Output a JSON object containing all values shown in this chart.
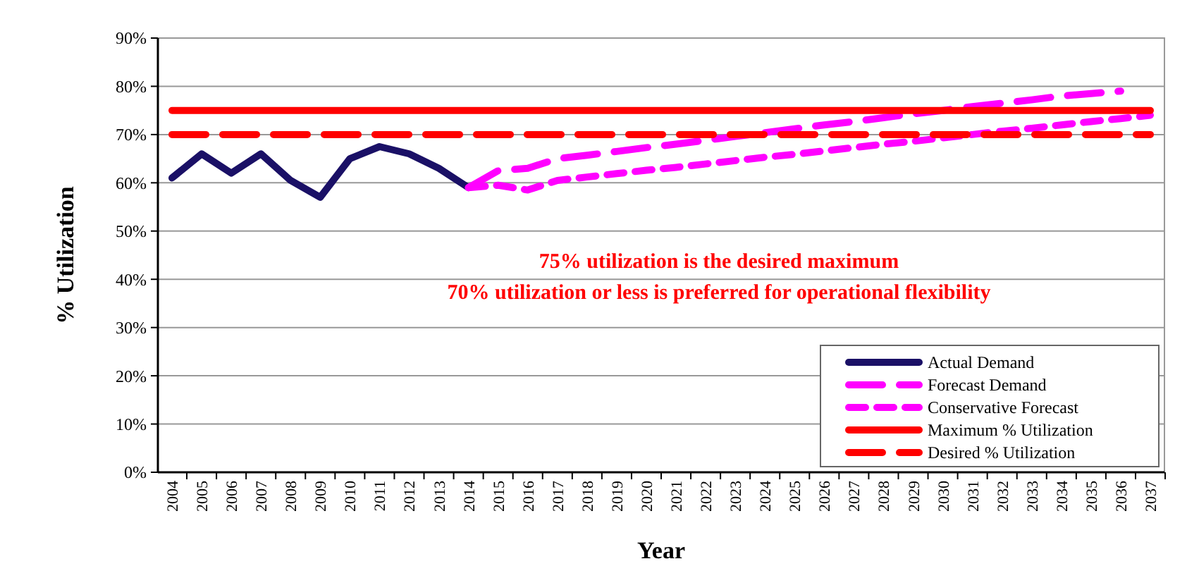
{
  "chart_data": {
    "type": "line",
    "xlabel": "Year",
    "ylabel": "% Utilization",
    "categories": [
      "2004",
      "2005",
      "2006",
      "2007",
      "2008",
      "2009",
      "2010",
      "2011",
      "2012",
      "2013",
      "2014",
      "2015",
      "2016",
      "2017",
      "2018",
      "2019",
      "2020",
      "2021",
      "2022",
      "2023",
      "2024",
      "2025",
      "2026",
      "2027",
      "2028",
      "2029",
      "2030",
      "2031",
      "2032",
      "2033",
      "2034",
      "2035",
      "2036",
      "2037"
    ],
    "series": [
      {
        "name": "Actual Demand",
        "color": "#1a1066",
        "line_style": "solid",
        "values": [
          61,
          66,
          62,
          66,
          60.5,
          57,
          65,
          67.5,
          66,
          63,
          59,
          null,
          null,
          null,
          null,
          null,
          null,
          null,
          null,
          null,
          null,
          null,
          null,
          null,
          null,
          null,
          null,
          null,
          null,
          null,
          null,
          null,
          null,
          null
        ]
      },
      {
        "name": "Forecast Demand",
        "color": "#ff00ff",
        "line_style": "dashed",
        "values": [
          null,
          null,
          null,
          null,
          null,
          null,
          null,
          null,
          null,
          null,
          59,
          62.5,
          63,
          65,
          65.7,
          66.5,
          67.3,
          68,
          68.8,
          69.6,
          70.4,
          71.2,
          72,
          72.7,
          73.5,
          74.3,
          75,
          75.8,
          76.5,
          77.2,
          78,
          78.5,
          79,
          null
        ]
      },
      {
        "name": "Conservative Forecast",
        "color": "#ff00ff",
        "line_style": "dotted",
        "values": [
          null,
          null,
          null,
          null,
          null,
          null,
          null,
          null,
          null,
          null,
          59,
          59.5,
          58.5,
          60.5,
          61.2,
          61.9,
          62.6,
          63.2,
          63.9,
          64.6,
          65.3,
          65.9,
          66.6,
          67.3,
          68,
          68.6,
          69.3,
          70,
          70.7,
          71.3,
          72,
          72.7,
          73.3,
          74
        ]
      },
      {
        "name": "Maximum % Utilization",
        "color": "#ff0000",
        "line_style": "solid",
        "values": [
          75,
          75,
          75,
          75,
          75,
          75,
          75,
          75,
          75,
          75,
          75,
          75,
          75,
          75,
          75,
          75,
          75,
          75,
          75,
          75,
          75,
          75,
          75,
          75,
          75,
          75,
          75,
          75,
          75,
          75,
          75,
          75,
          75,
          75
        ]
      },
      {
        "name": "Desired % Utilization",
        "color": "#ff0000",
        "line_style": "dashed",
        "values": [
          70,
          70,
          70,
          70,
          70,
          70,
          70,
          70,
          70,
          70,
          70,
          70,
          70,
          70,
          70,
          70,
          70,
          70,
          70,
          70,
          70,
          70,
          70,
          70,
          70,
          70,
          70,
          70,
          70,
          70,
          70,
          70,
          70,
          70
        ]
      }
    ],
    "ylim": [
      0,
      90
    ],
    "yticks": [
      {
        "value": 0,
        "label": "0%"
      },
      {
        "value": 10,
        "label": "10%"
      },
      {
        "value": 20,
        "label": "20%"
      },
      {
        "value": 30,
        "label": "30%"
      },
      {
        "value": 40,
        "label": "40%"
      },
      {
        "value": 50,
        "label": "50%"
      },
      {
        "value": 60,
        "label": "60%"
      },
      {
        "value": 70,
        "label": "70%"
      },
      {
        "value": 80,
        "label": "80%"
      },
      {
        "value": 90,
        "label": "90%"
      }
    ],
    "grid": "y",
    "legend": "bottom right",
    "annotations": [
      "75% utilization is the desired maximum",
      "70% utilization or less is preferred for operational flexibility"
    ]
  }
}
